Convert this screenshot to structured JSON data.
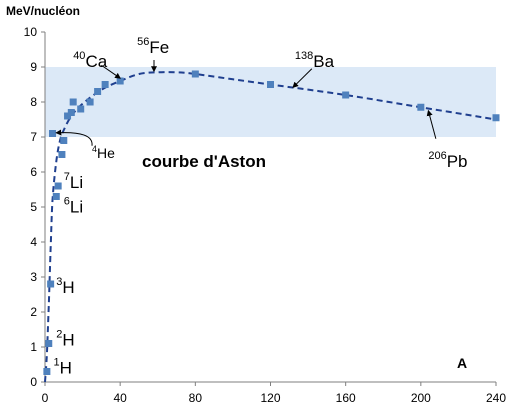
{
  "chart_data": {
    "type": "scatter",
    "title": "courbe d'Aston",
    "ylabel": "MeV/nucléon",
    "xlabel": "A",
    "xlim": [
      0,
      240
    ],
    "ylim": [
      0,
      10
    ],
    "x_ticks": [
      0,
      40,
      80,
      120,
      160,
      200,
      240
    ],
    "y_ticks": [
      0,
      1,
      2,
      3,
      4,
      5,
      6,
      7,
      8,
      9,
      10
    ],
    "grid": false,
    "highlight_band": [
      7,
      9
    ],
    "colors": {
      "points": "#4f81bd",
      "curve": "#1f3f8f",
      "band": "#dce9f7",
      "axis": "#7f7f7f"
    },
    "points": [
      {
        "x": 1,
        "y": 0.3
      },
      {
        "x": 2,
        "y": 1.1
      },
      {
        "x": 3,
        "y": 2.8
      },
      {
        "x": 4,
        "y": 7.1
      },
      {
        "x": 6,
        "y": 5.3
      },
      {
        "x": 7,
        "y": 5.6
      },
      {
        "x": 9,
        "y": 6.5
      },
      {
        "x": 10,
        "y": 6.9
      },
      {
        "x": 12,
        "y": 7.6
      },
      {
        "x": 14,
        "y": 7.7
      },
      {
        "x": 15,
        "y": 8.0
      },
      {
        "x": 19,
        "y": 7.8
      },
      {
        "x": 24,
        "y": 8.0
      },
      {
        "x": 28,
        "y": 8.3
      },
      {
        "x": 32,
        "y": 8.5
      },
      {
        "x": 40,
        "y": 8.6
      },
      {
        "x": 80,
        "y": 8.8
      },
      {
        "x": 120,
        "y": 8.5
      },
      {
        "x": 160,
        "y": 8.2
      },
      {
        "x": 200,
        "y": 7.85
      },
      {
        "x": 240,
        "y": 7.55
      }
    ],
    "curve": [
      {
        "x": 0,
        "y": 0
      },
      {
        "x": 1,
        "y": 0.8
      },
      {
        "x": 2,
        "y": 2.2
      },
      {
        "x": 3,
        "y": 3.8
      },
      {
        "x": 4,
        "y": 5.2
      },
      {
        "x": 6,
        "y": 6.3
      },
      {
        "x": 8,
        "y": 6.9
      },
      {
        "x": 10,
        "y": 7.2
      },
      {
        "x": 14,
        "y": 7.6
      },
      {
        "x": 20,
        "y": 7.95
      },
      {
        "x": 30,
        "y": 8.35
      },
      {
        "x": 40,
        "y": 8.6
      },
      {
        "x": 50,
        "y": 8.8
      },
      {
        "x": 60,
        "y": 8.85
      },
      {
        "x": 70,
        "y": 8.85
      },
      {
        "x": 80,
        "y": 8.8
      },
      {
        "x": 100,
        "y": 8.65
      },
      {
        "x": 120,
        "y": 8.5
      },
      {
        "x": 160,
        "y": 8.2
      },
      {
        "x": 200,
        "y": 7.85
      },
      {
        "x": 240,
        "y": 7.5
      }
    ],
    "annotations": [
      {
        "id": "h1",
        "mass": "1",
        "symbol": "H",
        "x": 4.5,
        "y": 0.25,
        "size": 17
      },
      {
        "id": "h2",
        "mass": "2",
        "symbol": "H",
        "x": 6,
        "y": 1.05,
        "size": 17
      },
      {
        "id": "h3",
        "mass": "3",
        "symbol": "H",
        "x": 6,
        "y": 2.55,
        "size": 17
      },
      {
        "id": "li6",
        "mass": "6",
        "symbol": "Li",
        "x": 10,
        "y": 4.85,
        "size": 17
      },
      {
        "id": "li7",
        "mass": "7",
        "symbol": "Li",
        "x": 10,
        "y": 5.55,
        "size": 17
      },
      {
        "id": "he4",
        "mass": "4",
        "symbol": "He",
        "x": 25,
        "y": 6.4,
        "size": 14
      },
      {
        "id": "ca40",
        "mass": "40",
        "symbol": "Ca",
        "x": 15,
        "y": 9.0,
        "size": 17
      },
      {
        "id": "fe56",
        "mass": "56",
        "symbol": "Fe",
        "x": 49,
        "y": 9.4,
        "size": 17
      },
      {
        "id": "ba138",
        "mass": "138",
        "symbol": "Ba",
        "x": 133,
        "y": 9.0,
        "size": 17
      },
      {
        "id": "pb206",
        "mass": "206",
        "symbol": "Pb",
        "x": 204,
        "y": 6.15,
        "size": 17
      }
    ]
  }
}
